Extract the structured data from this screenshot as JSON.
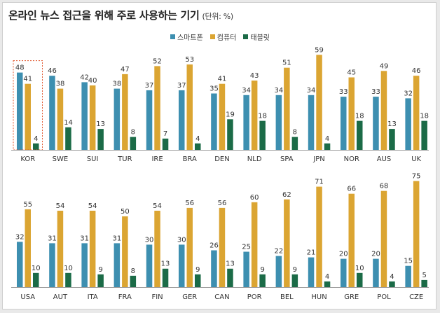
{
  "header": {
    "title": "온라인 뉴스 접근을 위해 주로 사용하는 기기",
    "unit": "(단위: %)"
  },
  "legend": {
    "items": [
      {
        "label": "스마트폰",
        "color": "#3d8fb0"
      },
      {
        "label": "컴퓨터",
        "color": "#dba532"
      },
      {
        "label": "태블릿",
        "color": "#1b6b47"
      }
    ]
  },
  "chart_data": [
    {
      "type": "bar",
      "series_names": [
        "스마트폰",
        "컴퓨터",
        "태블릿"
      ],
      "categories": [
        "KOR",
        "SWE",
        "SUI",
        "TUR",
        "IRE",
        "BRA",
        "DEN",
        "NLD",
        "SPA",
        "JPN",
        "NOR",
        "AUS",
        "UK"
      ],
      "series": [
        {
          "name": "스마트폰",
          "values": [
            48,
            46,
            42,
            38,
            37,
            37,
            35,
            34,
            34,
            34,
            33,
            33,
            32
          ]
        },
        {
          "name": "컴퓨터",
          "values": [
            41,
            38,
            40,
            47,
            52,
            53,
            41,
            43,
            51,
            59,
            45,
            49,
            46
          ]
        },
        {
          "name": "태블릿",
          "values": [
            4,
            14,
            13,
            8,
            7,
            4,
            19,
            18,
            8,
            4,
            18,
            13,
            18
          ]
        }
      ],
      "highlight_category": "KOR",
      "ylim": [
        0,
        62
      ]
    },
    {
      "type": "bar",
      "series_names": [
        "스마트폰",
        "컴퓨터",
        "태블릿"
      ],
      "categories": [
        "USA",
        "AUT",
        "ITA",
        "FRA",
        "FIN",
        "GER",
        "CAN",
        "POR",
        "BEL",
        "HUN",
        "GRE",
        "POL",
        "CZE"
      ],
      "series": [
        {
          "name": "스마트폰",
          "values": [
            32,
            31,
            31,
            31,
            30,
            30,
            26,
            25,
            22,
            21,
            20,
            20,
            15
          ]
        },
        {
          "name": "컴퓨터",
          "values": [
            55,
            54,
            54,
            50,
            54,
            56,
            56,
            60,
            62,
            71,
            66,
            68,
            75
          ]
        },
        {
          "name": "태블릿",
          "values": [
            10,
            10,
            9,
            8,
            13,
            9,
            13,
            9,
            9,
            4,
            10,
            4,
            5
          ]
        }
      ],
      "ylim": [
        0,
        78
      ]
    }
  ]
}
